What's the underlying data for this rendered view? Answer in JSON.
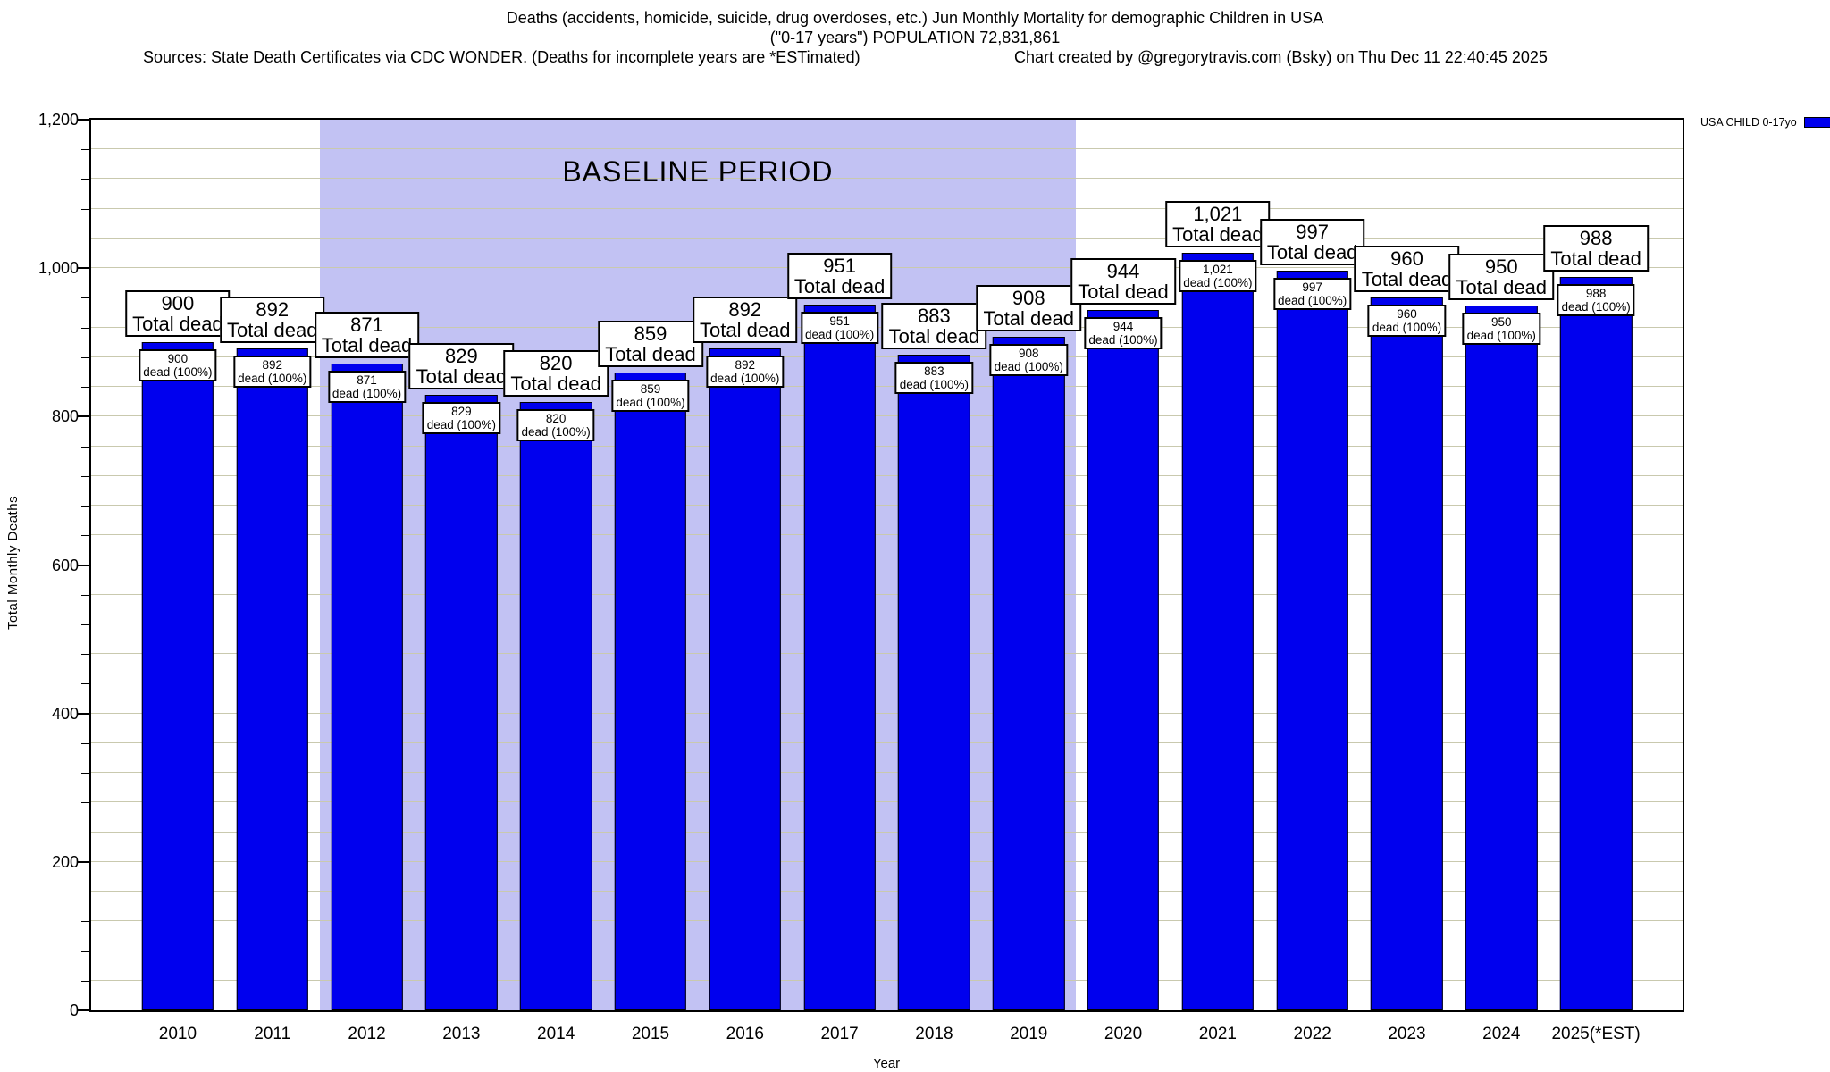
{
  "header": {
    "title_line1": "Deaths (accidents, homicide, suicide, drug overdoses, etc.) Jun Monthly Mortality for demographic Children in USA",
    "title_line2": "(\"0-17 years\") POPULATION 72,831,861",
    "sources": "Sources: State Death Certificates via CDC WONDER. (Deaths for incomplete years are *ESTimated)",
    "credit": "Chart created by @gregorytravis.com (Bsky) on Thu Dec 11 22:40:45 2025"
  },
  "legend": {
    "label": "USA CHILD 0-17yo",
    "color": "#0000ee"
  },
  "chart_data": {
    "type": "bar",
    "categories": [
      "2010",
      "2011",
      "2012",
      "2013",
      "2014",
      "2015",
      "2016",
      "2017",
      "2018",
      "2019",
      "2020",
      "2021",
      "2022",
      "2023",
      "2024",
      "2025(*EST)"
    ],
    "values": [
      900,
      892,
      871,
      829,
      820,
      859,
      892,
      951,
      883,
      908,
      944,
      1021,
      997,
      960,
      950,
      988
    ],
    "series_name": "USA CHILD 0-17yo",
    "title": "Deaths (accidents, homicide, suicide, drug overdoses, etc.) Jun Monthly Mortality for demographic Children in USA",
    "xlabel": "Year",
    "ylabel": "Total Monthly Deaths",
    "ylim": [
      0,
      1200
    ],
    "y_major_ticks": [
      0,
      200,
      400,
      600,
      800,
      1000,
      1200
    ],
    "y_major_tick_labels": [
      "0",
      "200",
      "400",
      "600",
      "800",
      "1,000",
      "1,200"
    ],
    "y_minor_step": 40,
    "grid": true,
    "legend_position": "top-right",
    "bar_color": "#0000ee",
    "annotation_total_suffix": "Total dead",
    "annotation_inner_suffix": "dead (100%)",
    "baseline_region": {
      "label": "BASELINE PERIOD",
      "start_category": "2012",
      "end_category": "2019",
      "color": "#c2c2f3"
    }
  }
}
